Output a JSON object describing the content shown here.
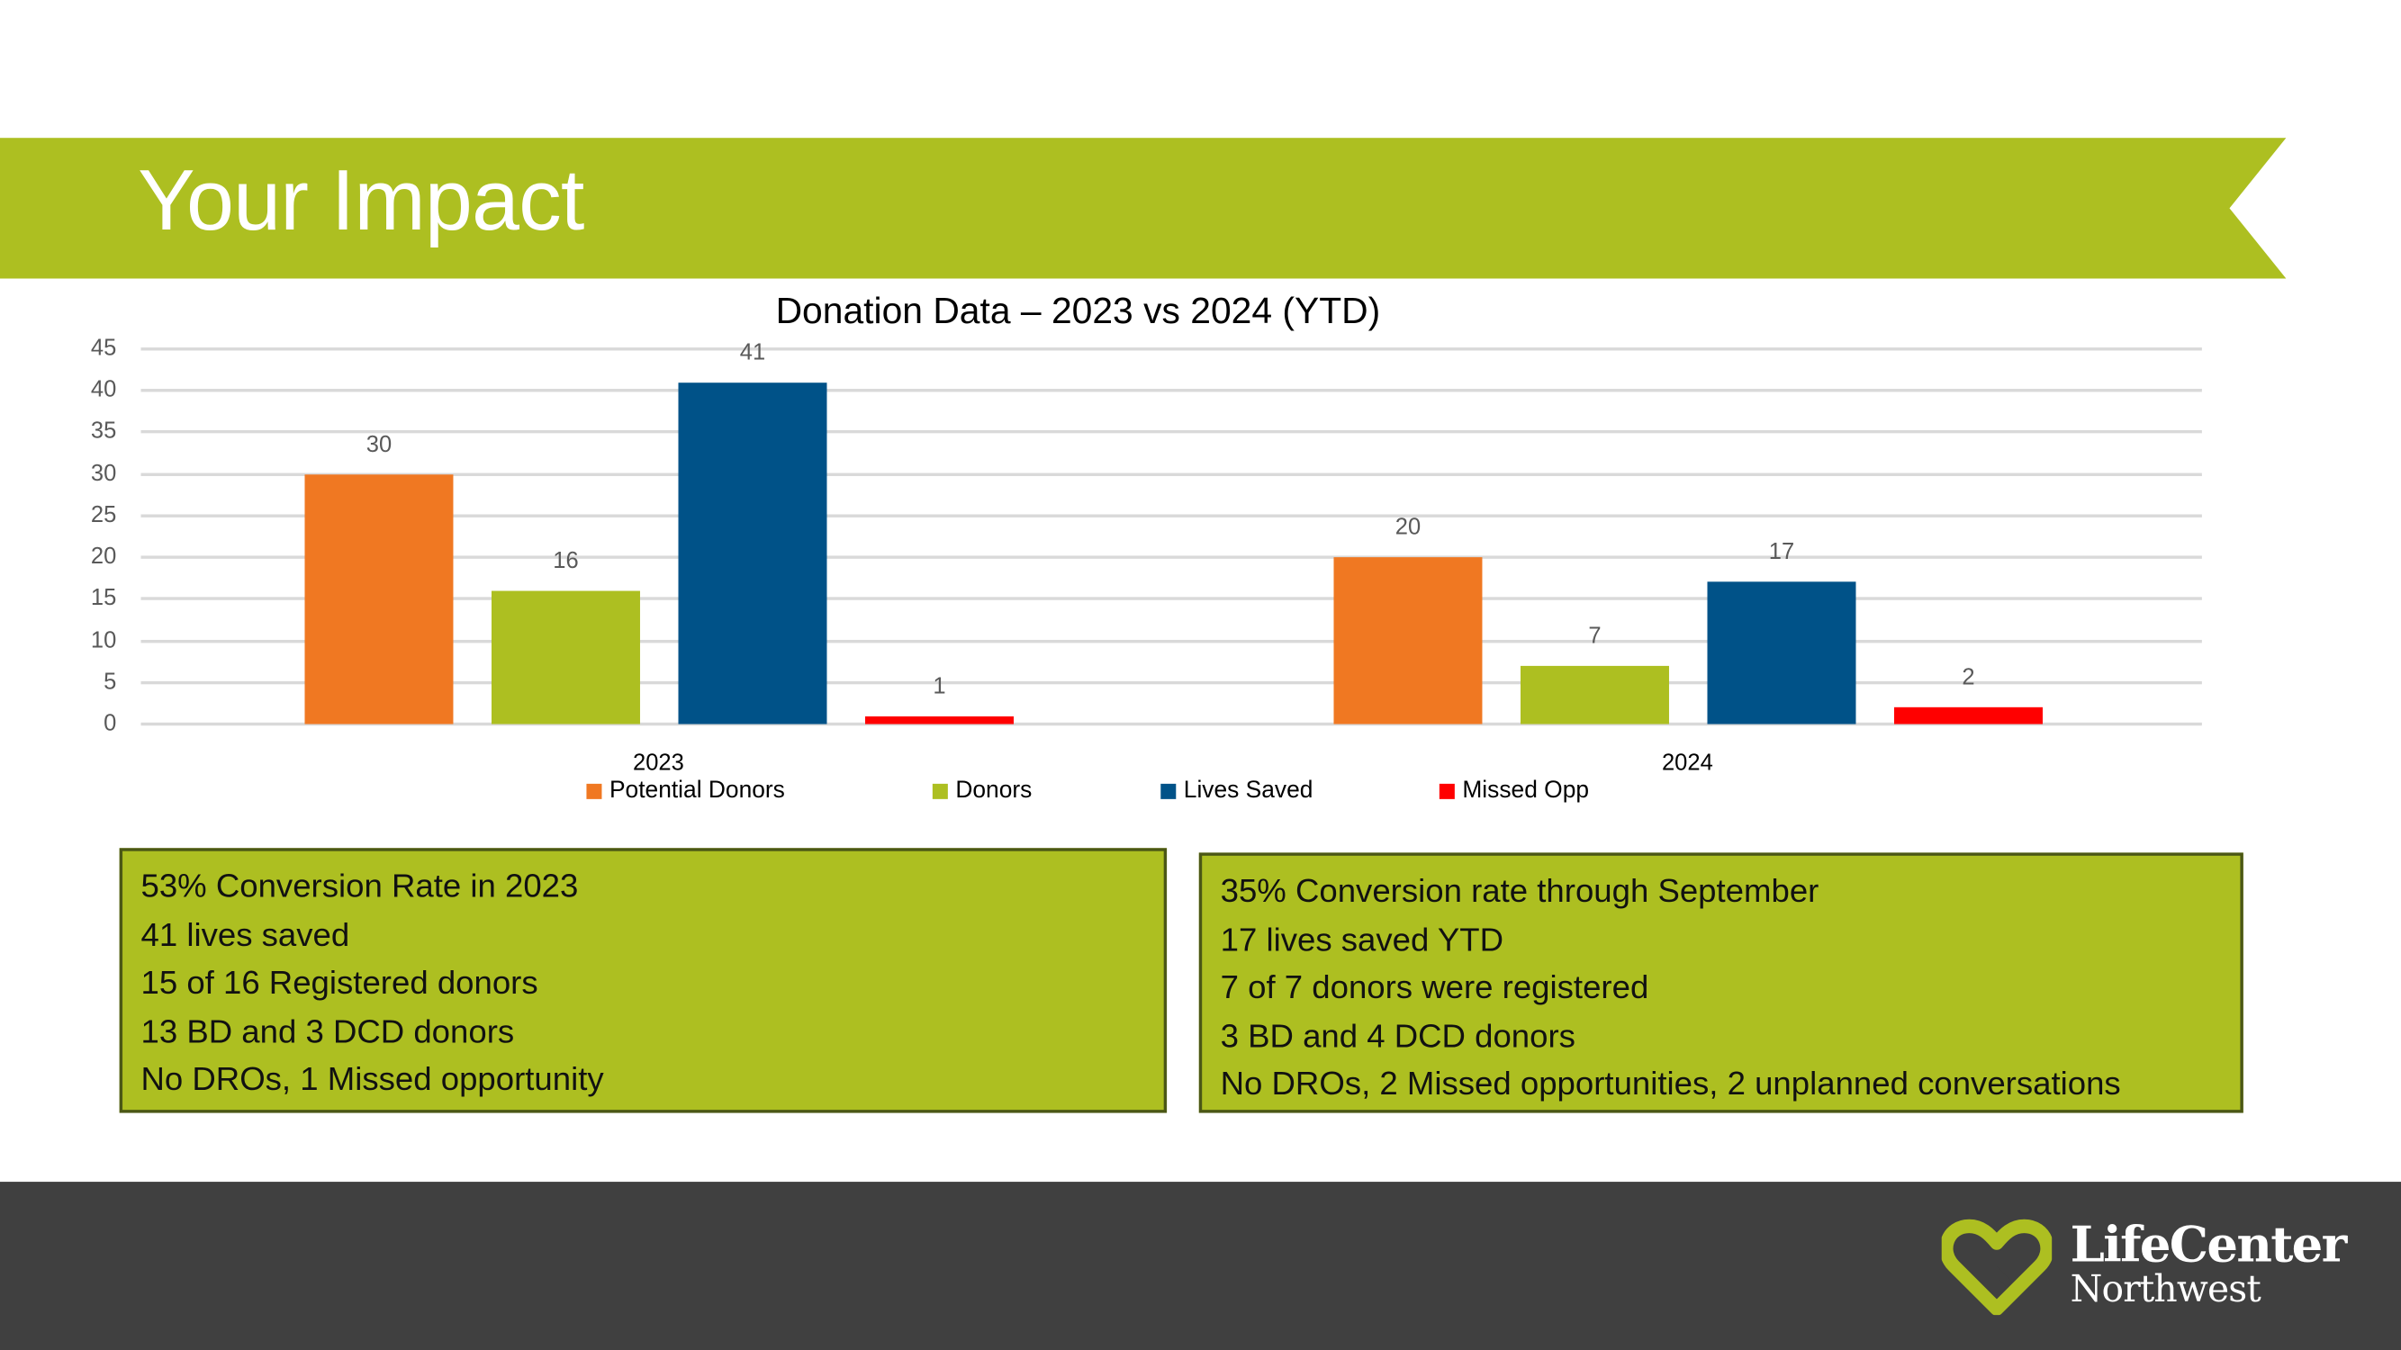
{
  "slide": {
    "title": "Your Impact",
    "colors": {
      "banner": "#adbf21",
      "footer": "#404040",
      "box_border": "#4b5716"
    }
  },
  "chart_data": {
    "type": "bar",
    "title": "Donation Data – 2023 vs 2024 (YTD)",
    "categories": [
      "2023",
      "2024"
    ],
    "series": [
      {
        "name": "Potential Donors",
        "color": "#f07822",
        "values": [
          30,
          20
        ]
      },
      {
        "name": "Donors",
        "color": "#adbf21",
        "values": [
          16,
          7
        ]
      },
      {
        "name": "Lives Saved",
        "color": "#005288",
        "values": [
          41,
          17
        ]
      },
      {
        "name": "Missed Opp",
        "color": "#ff0000",
        "values": [
          1,
          2
        ]
      }
    ],
    "yticks": [
      "0",
      "5",
      "10",
      "15",
      "20",
      "25",
      "30",
      "35",
      "40",
      "45"
    ],
    "ylim": [
      0,
      45
    ],
    "grid": true,
    "legend_position": "bottom",
    "xlabel": "",
    "ylabel": ""
  },
  "boxes": [
    {
      "lines": [
        "53% Conversion Rate in 2023",
        "41 lives saved",
        "15 of 16 Registered donors",
        "13 BD and 3 DCD donors",
        "No DROs, 1 Missed opportunity"
      ]
    },
    {
      "lines": [
        "35% Conversion rate through September",
        "17 lives saved YTD",
        "7 of 7 donors were registered",
        "3 BD and 4 DCD donors",
        "No DROs, 2 Missed opportunities, 2 unplanned conversations"
      ]
    }
  ],
  "logo": {
    "line1": "LifeCenter",
    "line2": "Northwest"
  }
}
